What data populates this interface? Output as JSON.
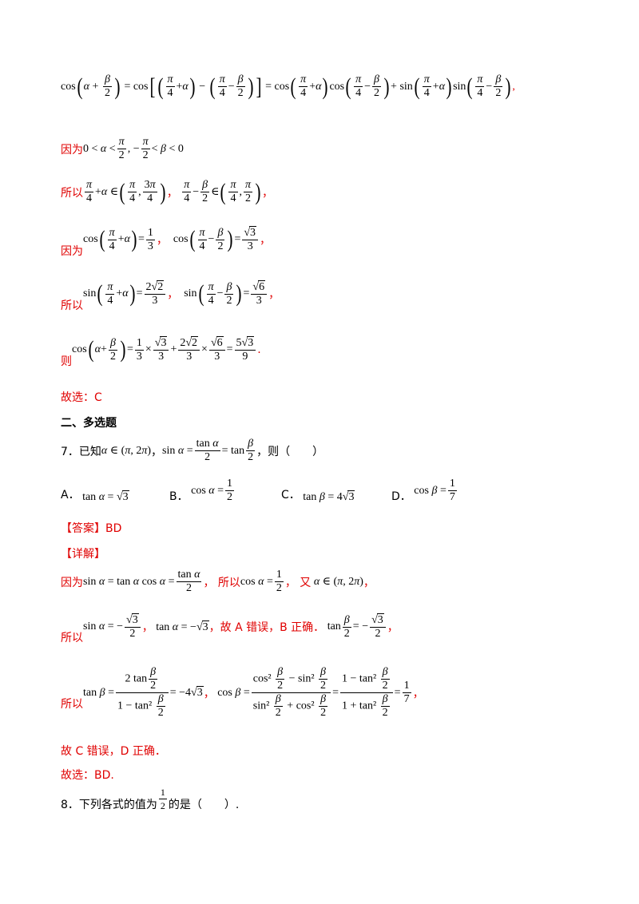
{
  "line1": {
    "formula_tail": ","
  },
  "line2": {
    "prefix": "因为"
  },
  "line3": {
    "prefix": "所以",
    "sep": "，",
    "end": "，"
  },
  "line4": {
    "prefix": "因为",
    "sep": "，",
    "end": "，"
  },
  "line5": {
    "prefix": "所以",
    "sep": "，",
    "end": "，"
  },
  "line6": {
    "prefix": "则",
    "end": "."
  },
  "answer_line": {
    "text": "故选：C"
  },
  "section": {
    "title": "二、多选题"
  },
  "q7": {
    "number": "7．已知",
    "sep": "，",
    "tail": "，则（　　）",
    "options": [
      {
        "label": "A．"
      },
      {
        "label": "B．"
      },
      {
        "label": "C．"
      },
      {
        "label": "D．"
      }
    ]
  },
  "answer_tag": {
    "text": "【答案】BD"
  },
  "detail_tag": {
    "text": "【详解】"
  },
  "d1": {
    "prefix": "因为",
    "mid": "，  所以",
    "mid2": "，  又",
    "end": "，"
  },
  "d2": {
    "prefix": "所以",
    "sep": "，",
    "mid": "，故 A 错误，B 正确．",
    "end": "，"
  },
  "d3": {
    "prefix": "所以",
    "sep": "，",
    "end": "，"
  },
  "d4": {
    "text": "故 C 错误，D 正确．"
  },
  "d5": {
    "text": "故选：BD."
  },
  "q8": {
    "number": "8．下列各式的值为",
    "tail": "的是（　　）."
  }
}
